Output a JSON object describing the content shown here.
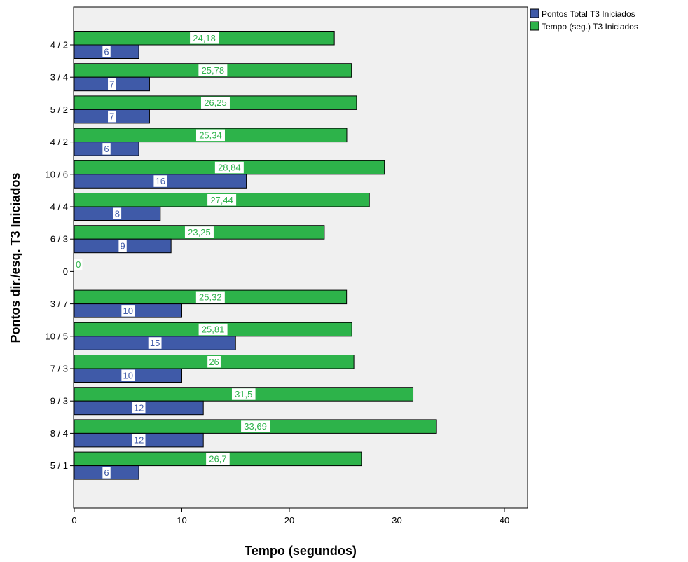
{
  "chart_data": {
    "type": "bar",
    "orientation": "horizontal",
    "categories": [
      "4 / 2",
      "3 / 4",
      "5 / 2",
      "4 / 2",
      "10 / 6",
      "4 / 4",
      "6 / 3",
      "0",
      "3 / 7",
      "10 / 5",
      "7 / 3",
      "9 / 3",
      "8 / 4",
      "5 / 1"
    ],
    "series": [
      {
        "name": "Pontos Total T3 Iniciados",
        "color": "#3f5aa8",
        "values": [
          6,
          7,
          7,
          6,
          16,
          8,
          9,
          0,
          10,
          15,
          10,
          12,
          12,
          6
        ],
        "labels": [
          "6",
          "7",
          "7",
          "6",
          "16",
          "8",
          "9",
          "",
          "10",
          "15",
          "10",
          "12",
          "12",
          "6"
        ]
      },
      {
        "name": "Tempo (seg.) T3 Iniciados",
        "color": "#2db34a",
        "values": [
          24.18,
          25.78,
          26.25,
          25.34,
          28.84,
          27.44,
          23.25,
          0,
          25.32,
          25.81,
          26,
          31.5,
          33.69,
          26.7
        ],
        "labels": [
          "24,18",
          "25,78",
          "26,25",
          "25,34",
          "28,84",
          "27,44",
          "23,25",
          "0",
          "25,32",
          "25,81",
          "26",
          "31,5",
          "33,69",
          "26,7"
        ]
      }
    ],
    "xlabel": "Tempo (segundos)",
    "ylabel": "Pontos  dir./esq. T3 Iniciados",
    "xlim": [
      0,
      42
    ],
    "xticks": [
      "0",
      "10",
      "20",
      "30",
      "40"
    ],
    "legend": "top-right",
    "grid": false,
    "plot_background": "#f0f0f0"
  }
}
